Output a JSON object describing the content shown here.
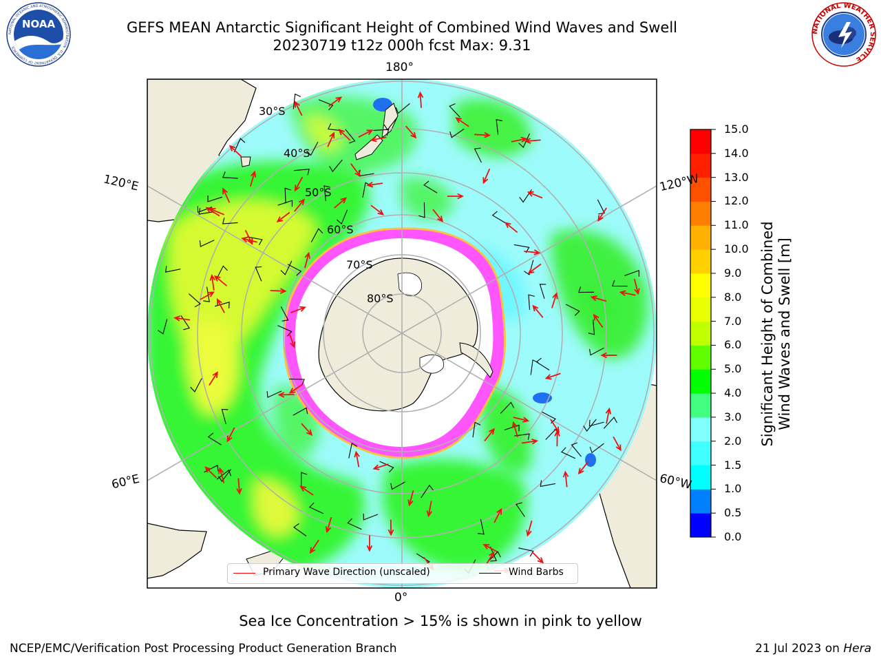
{
  "title": {
    "line1": "GEFS MEAN Antarctic Significant Height of Combined Wind Waves and Swell",
    "line2": "20230719 t12z 000h fcst   Max: 9.31"
  },
  "logos": {
    "left": {
      "text": "NOAA",
      "ring_text": "NATIONAL OCEANIC AND ATMOSPHERIC ADMINISTRATION · U.S. DEPARTMENT OF COMMERCE",
      "icon": "noaa-logo"
    },
    "right": {
      "ring_text": "NATIONAL WEATHER SERVICE",
      "icon": "nws-logo"
    }
  },
  "map": {
    "projection": "south-polar-stereographic",
    "longitude_labels": [
      "180°",
      "120°E",
      "120°W",
      "60°E",
      "60°W",
      "0°"
    ],
    "latitude_labels": [
      "30°S",
      "40°S",
      "50°S",
      "60°S",
      "70°S",
      "80°S"
    ],
    "colors": {
      "land": "#efecdc",
      "ice_shelf": "#ffffff",
      "sea_ice": "#ff55ff",
      "graticule": "#b0b0b0",
      "wave_arrow": "#ff0000",
      "wind_barb": "#000000"
    }
  },
  "colorbar": {
    "title_line1": "Significant Height of Combined",
    "title_line2": "Wind Waves and Swell [m]",
    "ticks": [
      "15.0",
      "14.0",
      "13.0",
      "12.0",
      "11.0",
      "10.0",
      "9.0",
      "8.0",
      "7.0",
      "6.0",
      "5.0",
      "4.0",
      "3.0",
      "2.0",
      "1.5",
      "1.0",
      "0.5",
      "0.0"
    ],
    "colors_bottom_to_top": [
      "#0000ff",
      "#0080ff",
      "#00ffff",
      "#40ffff",
      "#80ffff",
      "#40ff80",
      "#00ff00",
      "#60ff00",
      "#c0ff00",
      "#e8ff00",
      "#ffff00",
      "#ffd000",
      "#ffb000",
      "#ff8000",
      "#ff5000",
      "#ff2000",
      "#ff0000"
    ]
  },
  "legend": {
    "wave_label": "Primary Wave Direction (unscaled)",
    "wave_color": "#ff0000",
    "barb_label": "Wind Barbs",
    "barb_color": "#000000"
  },
  "note": "Sea Ice Concentration > 15% is shown in pink to yellow",
  "footer": {
    "left": "NCEP/EMC/Verification Post Processing Product Generation Branch",
    "right_date": "21 Jul 2023 on ",
    "right_host": "Hera"
  }
}
